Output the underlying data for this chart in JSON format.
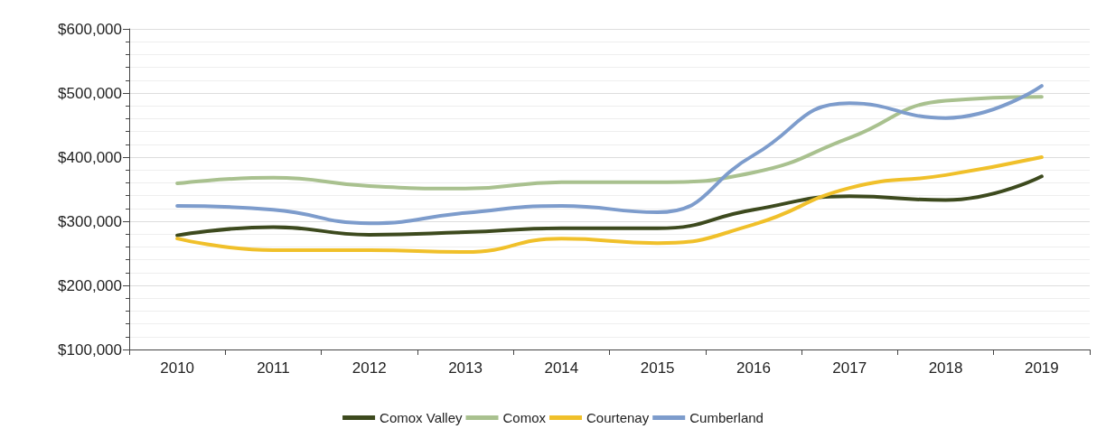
{
  "chart_data": {
    "type": "line",
    "categories": [
      "2010",
      "2011",
      "2012",
      "2013",
      "2014",
      "2015",
      "2016",
      "2017",
      "2018",
      "2019"
    ],
    "series": [
      {
        "name": "Comox Valley",
        "color": "#3d4a1e",
        "values": [
          278000,
          291000,
          279000,
          283000,
          289000,
          289000,
          318000,
          339000,
          333000,
          370000
        ]
      },
      {
        "name": "Comox",
        "color": "#a9c18f",
        "values": [
          359000,
          368000,
          355000,
          351000,
          361000,
          361000,
          376000,
          430000,
          488000,
          494000
        ]
      },
      {
        "name": "Courtenay",
        "color": "#f0c02a",
        "values": [
          273000,
          255000,
          255000,
          252000,
          273000,
          266000,
          295000,
          352000,
          372000,
          400000
        ]
      },
      {
        "name": "Cumberland",
        "color": "#7d9ccc",
        "values": [
          324000,
          318000,
          297000,
          313000,
          324000,
          314000,
          403000,
          484000,
          461000,
          511000
        ]
      }
    ],
    "ylim": [
      100000,
      600000
    ],
    "yticks": [
      {
        "value": 100000,
        "label": "$100,000"
      },
      {
        "value": 200000,
        "label": "$200,000"
      },
      {
        "value": 300000,
        "label": "$300,000"
      },
      {
        "value": 400000,
        "label": "$400,000"
      },
      {
        "value": 500000,
        "label": "$500,000"
      },
      {
        "value": 600000,
        "label": "$600,000"
      }
    ],
    "grid": "y",
    "legend": "bottom",
    "marker": "none",
    "line_style": "solid"
  }
}
